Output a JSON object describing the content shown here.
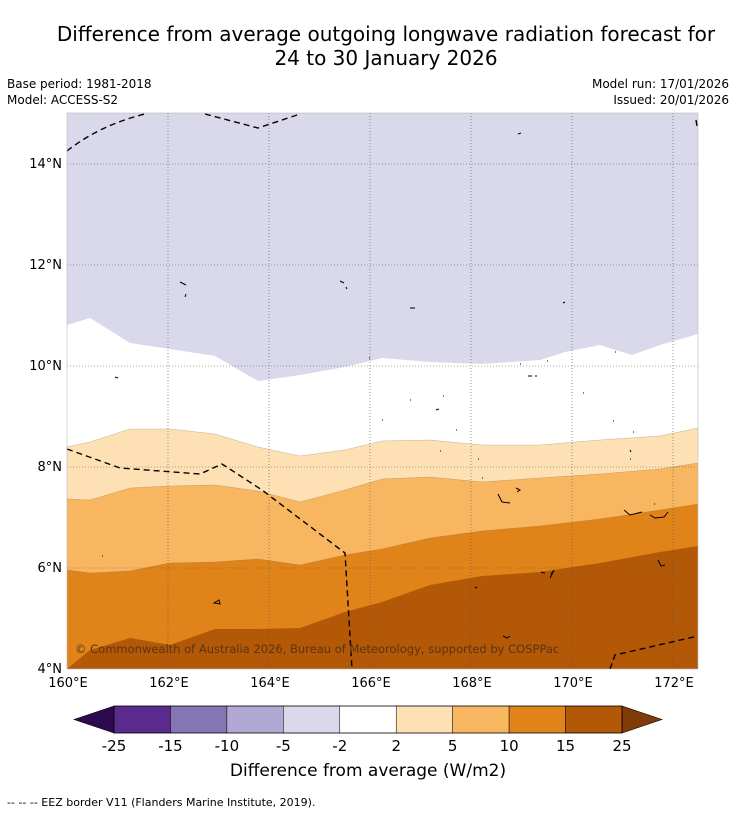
{
  "title_line1": "Difference from average outgoing longwave radiation forecast for",
  "title_line2": "24 to 30 January 2026",
  "base_period": "Base period: 1981-2018",
  "model": "Model: ACCESS-S2",
  "model_run": "Model run: 17/01/2026",
  "issued": "Issued: 20/01/2026",
  "map": {
    "lat_labels": [
      "4°N",
      "6°N",
      "8°N",
      "10°N",
      "12°N",
      "14°N"
    ],
    "lon_labels": [
      "160°E",
      "162°E",
      "164°E",
      "166°E",
      "168°E",
      "170°E",
      "172°E"
    ],
    "lat_range": [
      4,
      15
    ],
    "lon_range": [
      160,
      172.5
    ],
    "copyright": "© Commonwealth of Australia 2026, Bureau of Meteorology, supported by COSPPac"
  },
  "colorbar": {
    "ticks": [
      "-25",
      "-15",
      "-10",
      "-5",
      "-2",
      "2",
      "5",
      "10",
      "15",
      "25"
    ],
    "colors": [
      "#5a2a8c",
      "#8575b3",
      "#b1a8d3",
      "#d9d9eb",
      "#ffffff",
      "#fde1b4",
      "#f9b660",
      "#e0841a",
      "#b35806"
    ],
    "under_color": "#2d0a4e",
    "over_color": "#7f3b08",
    "title": "Difference from average (W/m2)"
  },
  "footnote": "--  --  -- EEZ border V11 (Flanders Marine Institute, 2019)."
}
